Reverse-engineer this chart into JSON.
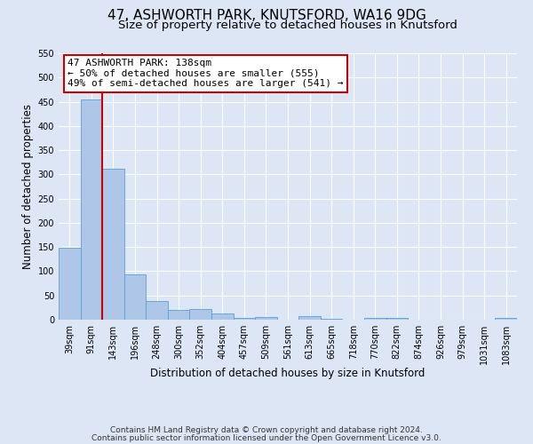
{
  "title": "47, ASHWORTH PARK, KNUTSFORD, WA16 9DG",
  "subtitle": "Size of property relative to detached houses in Knutsford",
  "xlabel": "Distribution of detached houses by size in Knutsford",
  "ylabel": "Number of detached properties",
  "bin_labels": [
    "39sqm",
    "91sqm",
    "143sqm",
    "196sqm",
    "248sqm",
    "300sqm",
    "352sqm",
    "404sqm",
    "457sqm",
    "509sqm",
    "561sqm",
    "613sqm",
    "665sqm",
    "718sqm",
    "770sqm",
    "822sqm",
    "874sqm",
    "926sqm",
    "979sqm",
    "1031sqm",
    "1083sqm"
  ],
  "bar_heights": [
    148,
    455,
    311,
    93,
    38,
    20,
    22,
    12,
    4,
    5,
    0,
    7,
    2,
    0,
    4,
    3,
    0,
    0,
    0,
    0,
    3
  ],
  "bar_color": "#aec6e8",
  "bar_edge_color": "#5a9fd4",
  "background_color": "#dce6f5",
  "grid_color": "#ffffff",
  "vline_color": "#cc0000",
  "annotation_title": "47 ASHWORTH PARK: 138sqm",
  "annotation_line1": "← 50% of detached houses are smaller (555)",
  "annotation_line2": "49% of semi-detached houses are larger (541) →",
  "annotation_box_color": "#ffffff",
  "annotation_box_edge_color": "#cc0000",
  "ylim": [
    0,
    550
  ],
  "yticks": [
    0,
    50,
    100,
    150,
    200,
    250,
    300,
    350,
    400,
    450,
    500,
    550
  ],
  "footer1": "Contains HM Land Registry data © Crown copyright and database right 2024.",
  "footer2": "Contains public sector information licensed under the Open Government Licence v3.0.",
  "title_fontsize": 11,
  "subtitle_fontsize": 9.5,
  "label_fontsize": 8.5,
  "tick_fontsize": 7,
  "annotation_title_fontsize": 8.5,
  "annotation_body_fontsize": 8,
  "footer_fontsize": 6.5
}
